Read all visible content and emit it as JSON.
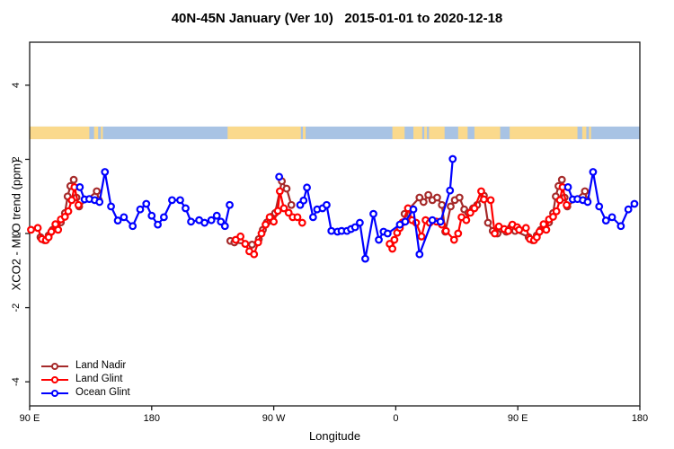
{
  "title": "40N-45N January (Ver 10)   2015-01-01 to 2020-12-18",
  "chart_data": {
    "type": "line",
    "title": "40N-45N January (Ver 10)   2015-01-01 to 2020-12-18",
    "xlabel": "Longitude",
    "ylabel": "XCO2 - MLO trend (ppm)",
    "grid": false,
    "legend_position": "bottom-left-inside",
    "x_axis": {
      "note": "longitude axis starts at 90E and wraps eastward around the globe to 180 (450 degrees total); values stored as degrees along axis where 90=90E, 180=180, 270=90W, 360=0, 450=90E, 540=180",
      "range": [
        90,
        540
      ],
      "ticks": [
        90,
        180,
        270,
        360,
        450,
        540
      ],
      "tick_labels": [
        "90 E",
        "180",
        "90 W",
        "0",
        "90 E",
        "180"
      ]
    },
    "y_axis": {
      "range": [
        -4.65,
        5.16
      ],
      "ticks": [
        -4,
        -2,
        0,
        2,
        4
      ],
      "tick_labels": [
        "-4",
        "-2",
        "0",
        "2",
        "4"
      ]
    },
    "map_band": {
      "note": "land/ocean strip at 40N-45N drawn across the top of the plot",
      "y_ppm": [
        2.545,
        2.885
      ],
      "ocean_color": "#A8C3E4",
      "land_color": "#FAD98C",
      "land_segments_deg": [
        [
          90,
          134
        ],
        [
          137.5,
          140.5
        ],
        [
          142.5,
          144
        ],
        [
          236,
          290
        ],
        [
          291.5,
          293.5
        ],
        [
          357.5,
          366.5
        ],
        [
          373,
          379.5
        ],
        [
          381,
          383
        ],
        [
          384.5,
          396
        ],
        [
          406,
          413
        ],
        [
          418,
          437
        ],
        [
          444,
          494
        ],
        [
          497.5,
          500.5
        ],
        [
          502.5,
          504
        ]
      ]
    },
    "series": [
      {
        "name": "Land Nadir",
        "color": "#A52A2A",
        "points": [
          [
            98,
            -0.1
          ],
          [
            101,
            -0.18
          ],
          [
            104,
            -0.05
          ],
          [
            107,
            0.1
          ],
          [
            110,
            0.17
          ],
          [
            113,
            0.3
          ],
          [
            116,
            0.55
          ],
          [
            118,
            1.0
          ],
          [
            120,
            1.28
          ],
          [
            122.5,
            1.45
          ],
          [
            124.5,
            0.97
          ],
          [
            126.5,
            0.73
          ],
          [
            139.5,
            1.14
          ],
          [
            141,
            0.9
          ],
          [
            238,
            -0.2
          ],
          [
            241,
            -0.24
          ],
          [
            254,
            -0.3
          ],
          [
            259,
            -0.15
          ],
          [
            262,
            0.1
          ],
          [
            265,
            0.3
          ],
          [
            268,
            0.45
          ],
          [
            271,
            0.55
          ],
          [
            276,
            1.41
          ],
          [
            279.5,
            1.21
          ],
          [
            283,
            0.77
          ],
          [
            366.5,
            0.53
          ],
          [
            377.5,
            0.97
          ],
          [
            380.5,
            0.85
          ],
          [
            384,
            1.04
          ],
          [
            387,
            0.9
          ],
          [
            390.5,
            0.97
          ],
          [
            394,
            0.77
          ],
          [
            396.5,
            0.05
          ],
          [
            400.5,
            0.73
          ],
          [
            403.5,
            0.9
          ],
          [
            407,
            0.97
          ],
          [
            410.5,
            0.65
          ],
          [
            413.5,
            0.56
          ],
          [
            417,
            0.68
          ],
          [
            420,
            0.77
          ],
          [
            425,
            1.02
          ],
          [
            428,
            0.29
          ],
          [
            431.5,
            0.07
          ],
          [
            435,
            0.0
          ],
          [
            438,
            0.12
          ],
          [
            441.5,
            0.05
          ],
          [
            445,
            0.17
          ],
          [
            448,
            0.07
          ],
          [
            458,
            -0.1
          ],
          [
            461,
            -0.18
          ],
          [
            464,
            -0.05
          ],
          [
            467,
            0.1
          ],
          [
            470,
            0.17
          ],
          [
            473,
            0.3
          ],
          [
            476,
            0.55
          ],
          [
            478,
            1.0
          ],
          [
            480,
            1.28
          ],
          [
            482.5,
            1.45
          ],
          [
            484.5,
            0.97
          ],
          [
            486.5,
            0.73
          ],
          [
            499.5,
            1.14
          ],
          [
            501,
            0.9
          ]
        ]
      },
      {
        "name": "Land Glint",
        "color": "#FF0000",
        "points": [
          [
            91,
            0.1
          ],
          [
            96,
            0.15
          ],
          [
            99,
            -0.15
          ],
          [
            102,
            -0.18
          ],
          [
            104,
            -0.1
          ],
          [
            106,
            0.05
          ],
          [
            109,
            0.25
          ],
          [
            111,
            0.1
          ],
          [
            113,
            0.38
          ],
          [
            116,
            0.45
          ],
          [
            118.5,
            0.6
          ],
          [
            121,
            0.9
          ],
          [
            123,
            1.25
          ],
          [
            126,
            0.77
          ],
          [
            242,
            -0.17
          ],
          [
            245.5,
            -0.08
          ],
          [
            249,
            -0.28
          ],
          [
            252,
            -0.48
          ],
          [
            255.5,
            -0.56
          ],
          [
            258.5,
            -0.24
          ],
          [
            261,
            0.0
          ],
          [
            264,
            0.24
          ],
          [
            267,
            0.44
          ],
          [
            270,
            0.32
          ],
          [
            273,
            0.61
          ],
          [
            274.5,
            1.14
          ],
          [
            277.5,
            0.68
          ],
          [
            281,
            0.56
          ],
          [
            284,
            0.44
          ],
          [
            287.5,
            0.44
          ],
          [
            291,
            0.29
          ],
          [
            355.5,
            -0.28
          ],
          [
            357.5,
            -0.41
          ],
          [
            359,
            -0.17
          ],
          [
            361,
            0.02
          ],
          [
            363,
            0.15
          ],
          [
            365,
            0.3
          ],
          [
            369,
            0.68
          ],
          [
            372,
            0.36
          ],
          [
            375,
            0.29
          ],
          [
            379,
            -0.08
          ],
          [
            382,
            0.36
          ],
          [
            385,
            0.29
          ],
          [
            390,
            0.32
          ],
          [
            394,
            0.24
          ],
          [
            397,
            0.07
          ],
          [
            403,
            -0.17
          ],
          [
            406,
            0.0
          ],
          [
            408.5,
            0.44
          ],
          [
            412,
            0.36
          ],
          [
            415,
            0.56
          ],
          [
            418,
            0.68
          ],
          [
            423,
            1.14
          ],
          [
            425,
            0.92
          ],
          [
            430,
            0.9
          ],
          [
            433,
            0.0
          ],
          [
            436,
            0.19
          ],
          [
            440,
            0.12
          ],
          [
            443,
            0.07
          ],
          [
            446,
            0.24
          ],
          [
            449.5,
            0.17
          ],
          [
            451,
            0.1
          ],
          [
            456,
            0.15
          ],
          [
            459,
            -0.15
          ],
          [
            462,
            -0.18
          ],
          [
            464,
            -0.1
          ],
          [
            466,
            0.05
          ],
          [
            469,
            0.25
          ],
          [
            471,
            0.1
          ],
          [
            473,
            0.38
          ],
          [
            476,
            0.45
          ],
          [
            478.5,
            0.6
          ],
          [
            481,
            0.9
          ],
          [
            483,
            1.25
          ],
          [
            486,
            0.77
          ]
        ]
      },
      {
        "name": "Ocean Glint",
        "color": "#0000FF",
        "points": [
          [
            127,
            1.25
          ],
          [
            130.5,
            0.92
          ],
          [
            134,
            0.93
          ],
          [
            138,
            0.9
          ],
          [
            141.5,
            0.85
          ],
          [
            145.5,
            1.66
          ],
          [
            150,
            0.73
          ],
          [
            155,
            0.35
          ],
          [
            159.5,
            0.44
          ],
          [
            166,
            0.2
          ],
          [
            171.5,
            0.65
          ],
          [
            176,
            0.8
          ],
          [
            180,
            0.48
          ],
          [
            184.5,
            0.24
          ],
          [
            189,
            0.44
          ],
          [
            195,
            0.9
          ],
          [
            201,
            0.9
          ],
          [
            205,
            0.68
          ],
          [
            209,
            0.32
          ],
          [
            215,
            0.36
          ],
          [
            219,
            0.29
          ],
          [
            224,
            0.36
          ],
          [
            228,
            0.48
          ],
          [
            231,
            0.32
          ],
          [
            234,
            0.2
          ],
          [
            237.5,
            0.77
          ],
          [
            274,
            1.53
          ],
          [
            289.5,
            0.77
          ],
          [
            292,
            0.89
          ],
          [
            294.5,
            1.24
          ],
          [
            299,
            0.44
          ],
          [
            302,
            0.65
          ],
          [
            306,
            0.68
          ],
          [
            309,
            0.77
          ],
          [
            312.5,
            0.07
          ],
          [
            317,
            0.05
          ],
          [
            320,
            0.07
          ],
          [
            324,
            0.07
          ],
          [
            327,
            0.12
          ],
          [
            330,
            0.17
          ],
          [
            333.5,
            0.29
          ],
          [
            337.5,
            -0.68
          ],
          [
            343.5,
            0.53
          ],
          [
            347.5,
            -0.17
          ],
          [
            351,
            0.05
          ],
          [
            354,
            0.0
          ],
          [
            363,
            0.24
          ],
          [
            367,
            0.32
          ],
          [
            373,
            0.65
          ],
          [
            377.5,
            -0.56
          ],
          [
            387,
            0.36
          ],
          [
            393,
            0.32
          ],
          [
            400,
            1.16
          ],
          [
            402,
            2.01
          ],
          [
            487,
            1.25
          ],
          [
            490.5,
            0.92
          ],
          [
            494,
            0.93
          ],
          [
            498,
            0.9
          ],
          [
            501.5,
            0.85
          ],
          [
            505.5,
            1.66
          ],
          [
            510,
            0.73
          ],
          [
            515,
            0.35
          ],
          [
            519.5,
            0.44
          ],
          [
            526,
            0.2
          ],
          [
            531.5,
            0.65
          ],
          [
            536,
            0.8
          ]
        ]
      }
    ]
  },
  "legend": {
    "items": [
      {
        "label": "Land Nadir",
        "color": "#A52A2A"
      },
      {
        "label": "Land Glint",
        "color": "#FF0000"
      },
      {
        "label": "Ocean Glint",
        "color": "#0000FF"
      }
    ]
  }
}
